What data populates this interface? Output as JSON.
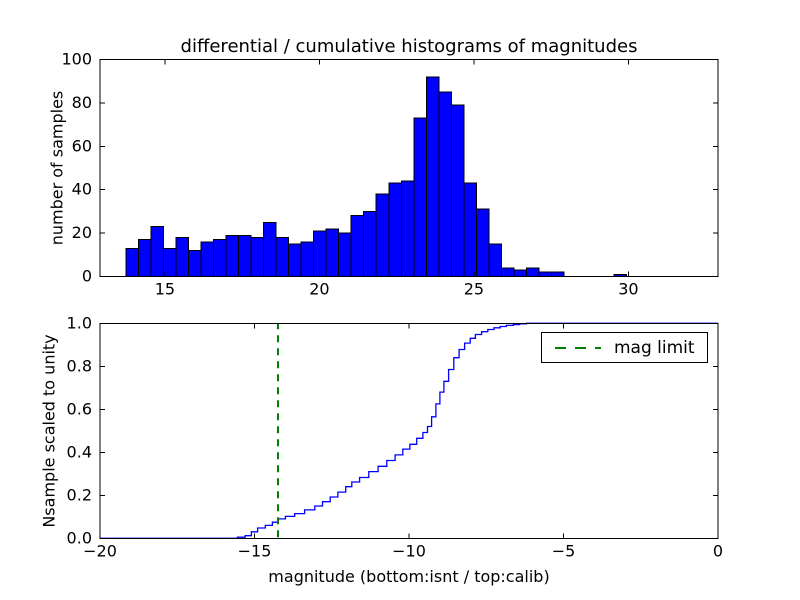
{
  "figure": {
    "background": "#ffffff"
  },
  "top_plot": {
    "title": "differential / cumulative histograms of magnitudes",
    "ylabel": "number of samples"
  },
  "bottom_plot": {
    "ylabel": "Nsample scaled to unity",
    "xlabel": "magnitude (bottom:isnt / top:calib)",
    "legend": {
      "label": "mag limit"
    }
  },
  "chart_data": [
    {
      "type": "bar",
      "title": "differential / cumulative histograms of magnitudes",
      "ylabel": "number of samples",
      "xlabel": "",
      "xlim": [
        12.9,
        32.9
      ],
      "ylim": [
        0,
        100
      ],
      "xticks": [
        15,
        20,
        25,
        30
      ],
      "xtick_labels": [
        "15",
        "20",
        "25",
        "30"
      ],
      "yticks": [
        0,
        20,
        40,
        60,
        80,
        100
      ],
      "ytick_labels": [
        "0",
        "20",
        "40",
        "60",
        "80",
        "100"
      ],
      "grid": false,
      "bar_color": "#0000ff",
      "bar_edge_color": "#000000",
      "bin_start": 13.74,
      "bin_width": 0.405,
      "values": [
        13,
        17,
        23,
        13,
        18,
        12,
        16,
        17,
        19,
        19,
        18,
        25,
        18,
        15,
        16,
        21,
        22,
        20,
        28,
        30,
        38,
        43,
        44,
        73,
        92,
        85,
        79,
        43,
        31,
        15,
        4,
        3,
        4,
        2,
        2,
        0,
        0,
        0,
        0,
        1
      ]
    },
    {
      "type": "line",
      "style": "step-after-cumulative",
      "ylabel": "Nsample scaled to unity",
      "xlabel": "magnitude (bottom:isnt / top:calib)",
      "xlim": [
        -20,
        0
      ],
      "ylim": [
        0.0,
        1.0
      ],
      "xticks": [
        -20,
        -15,
        -10,
        -5,
        0
      ],
      "xtick_labels": [
        "−20",
        "−15",
        "−10",
        "−5",
        "0"
      ],
      "yticks": [
        0.0,
        0.2,
        0.4,
        0.6,
        0.8,
        1.0
      ],
      "ytick_labels": [
        "0.0",
        "0.2",
        "0.4",
        "0.6",
        "0.8",
        "1.0"
      ],
      "grid": false,
      "line_color": "#0000ff",
      "step_points": [
        [
          -15.8,
          0
        ],
        [
          -15.55,
          0.005
        ],
        [
          -15.3,
          0.012
        ],
        [
          -15.1,
          0.03
        ],
        [
          -14.9,
          0.048
        ],
        [
          -14.65,
          0.06
        ],
        [
          -14.42,
          0.075
        ],
        [
          -14.24,
          0.09
        ],
        [
          -14.0,
          0.102
        ],
        [
          -13.7,
          0.115
        ],
        [
          -13.38,
          0.132
        ],
        [
          -13.05,
          0.15
        ],
        [
          -12.8,
          0.17
        ],
        [
          -12.55,
          0.192
        ],
        [
          -12.3,
          0.215
        ],
        [
          -12.05,
          0.24
        ],
        [
          -11.85,
          0.262
        ],
        [
          -11.6,
          0.283
        ],
        [
          -11.3,
          0.31
        ],
        [
          -11.0,
          0.335
        ],
        [
          -10.72,
          0.362
        ],
        [
          -10.45,
          0.388
        ],
        [
          -10.2,
          0.415
        ],
        [
          -9.97,
          0.437
        ],
        [
          -9.75,
          0.465
        ],
        [
          -9.55,
          0.492
        ],
        [
          -9.4,
          0.52
        ],
        [
          -9.27,
          0.565
        ],
        [
          -9.13,
          0.625
        ],
        [
          -9.0,
          0.68
        ],
        [
          -8.87,
          0.73
        ],
        [
          -8.72,
          0.785
        ],
        [
          -8.55,
          0.84
        ],
        [
          -8.38,
          0.878
        ],
        [
          -8.2,
          0.908
        ],
        [
          -8.02,
          0.93
        ],
        [
          -7.85,
          0.948
        ],
        [
          -7.65,
          0.961
        ],
        [
          -7.45,
          0.971
        ],
        [
          -7.25,
          0.979
        ],
        [
          -7.05,
          0.985
        ],
        [
          -6.85,
          0.99
        ],
        [
          -6.62,
          0.994
        ],
        [
          -6.42,
          0.997
        ],
        [
          -6.2,
          1.0
        ],
        [
          0,
          1.0
        ]
      ],
      "mag_limit_line": {
        "x": -14.24,
        "color": "#007f00",
        "style": "dashed",
        "label": "mag limit"
      },
      "legend": {
        "label": "mag limit",
        "position": "upper right"
      }
    }
  ]
}
